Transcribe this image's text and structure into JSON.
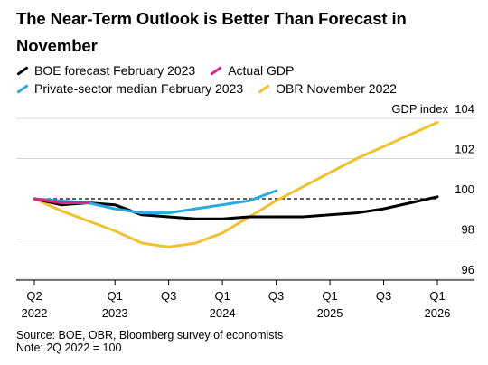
{
  "chart_data": {
    "type": "line",
    "title": "The Near-Term Outlook is Better Than Forecast in November",
    "ylabel": "GDP index",
    "ylim": [
      95.5,
      104.2
    ],
    "yticks": [
      96,
      98,
      100,
      102,
      104
    ],
    "reference_line": 100,
    "x": [
      "2022Q2",
      "2022Q3",
      "2022Q4",
      "2023Q1",
      "2023Q2",
      "2023Q3",
      "2023Q4",
      "2024Q1",
      "2024Q2",
      "2024Q3",
      "2024Q4",
      "2025Q1",
      "2025Q2",
      "2025Q3",
      "2025Q4",
      "2026Q1"
    ],
    "xticks": [
      {
        "quarter": "Q2",
        "year": "2022",
        "index": 0
      },
      {
        "quarter": "Q1",
        "year": "2023",
        "index": 3
      },
      {
        "quarter": "Q3",
        "year": "",
        "index": 5
      },
      {
        "quarter": "Q1",
        "year": "2024",
        "index": 7
      },
      {
        "quarter": "Q3",
        "year": "",
        "index": 9
      },
      {
        "quarter": "Q1",
        "year": "2025",
        "index": 11
      },
      {
        "quarter": "Q3",
        "year": "",
        "index": 13
      },
      {
        "quarter": "Q1",
        "year": "2026",
        "index": 15
      }
    ],
    "series": [
      {
        "name": "OBR November 2022",
        "color": "#f2c12e",
        "values": [
          100.0,
          99.4,
          98.9,
          98.4,
          97.8,
          97.6,
          97.8,
          98.3,
          99.1,
          99.9,
          100.6,
          101.3,
          102.0,
          102.6,
          103.2,
          103.8
        ]
      },
      {
        "name": "BOE forecast February 2023",
        "color": "#000000",
        "values": [
          100.0,
          99.7,
          99.8,
          99.7,
          99.2,
          99.1,
          99.0,
          99.0,
          99.1,
          99.1,
          99.1,
          99.2,
          99.3,
          99.5,
          99.8,
          100.1
        ]
      },
      {
        "name": "Private-sector median February 2023",
        "color": "#2aa9e0",
        "values": [
          100.0,
          99.9,
          99.8,
          99.5,
          99.3,
          99.3,
          99.5,
          99.7,
          99.9,
          100.4,
          null,
          null,
          null,
          null,
          null,
          null
        ]
      },
      {
        "name": "Actual GDP",
        "color": "#e0218a",
        "values": [
          100.0,
          99.8,
          99.8,
          null,
          null,
          null,
          null,
          null,
          null,
          null,
          null,
          null,
          null,
          null,
          null,
          null
        ]
      }
    ],
    "legend": "top",
    "grid": true
  },
  "legend_rows": [
    [
      0,
      1
    ],
    [
      2,
      3
    ]
  ],
  "legend_order": [
    "BOE forecast February 2023",
    "Actual GDP",
    "Private-sector median February 2023",
    "OBR November 2022"
  ],
  "footer": {
    "source": "Source: BOE, OBR, Bloomberg survey of economists",
    "note": "Note: 2Q 2022 = 100"
  }
}
